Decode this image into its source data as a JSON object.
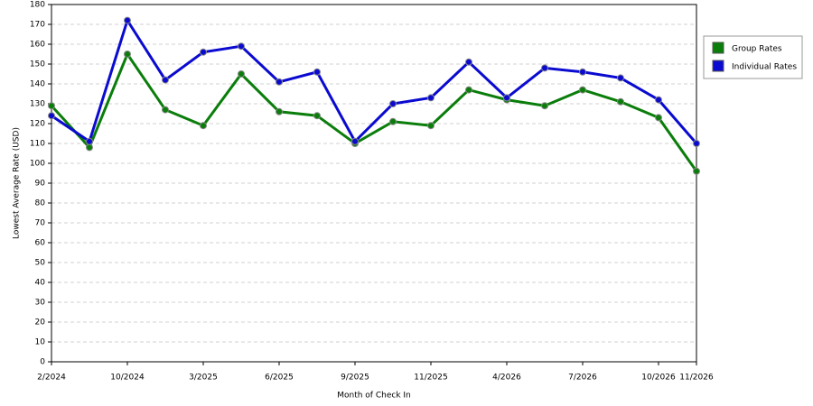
{
  "chart_data": {
    "type": "line",
    "x_label": "Month of Check In",
    "y_label": "Lowest Average Rate (USD)",
    "categories": [
      "2/2024",
      null,
      "10/2024",
      null,
      "3/2025",
      null,
      "6/2025",
      null,
      "9/2025",
      null,
      "11/2025",
      null,
      "4/2026",
      null,
      "7/2026",
      null,
      "10/2026",
      "11/2026"
    ],
    "series": [
      {
        "name": "Group Rates",
        "color": "#0a7d0a",
        "values": [
          129,
          108,
          155,
          127,
          119,
          145,
          126,
          124,
          110,
          121,
          119,
          137,
          132,
          129,
          137,
          131,
          123,
          96
        ]
      },
      {
        "name": "Individual Rates",
        "color": "#0a0ad0",
        "values": [
          124,
          111,
          172,
          142,
          156,
          159,
          141,
          146,
          111,
          130,
          133,
          151,
          133,
          148,
          146,
          143,
          132,
          110
        ]
      }
    ],
    "ylim": [
      0,
      180
    ],
    "yticks": [
      0,
      10,
      20,
      30,
      40,
      50,
      60,
      70,
      80,
      90,
      100,
      110,
      120,
      130,
      140,
      150,
      160,
      170,
      180
    ],
    "grid": true,
    "legend": "right"
  }
}
